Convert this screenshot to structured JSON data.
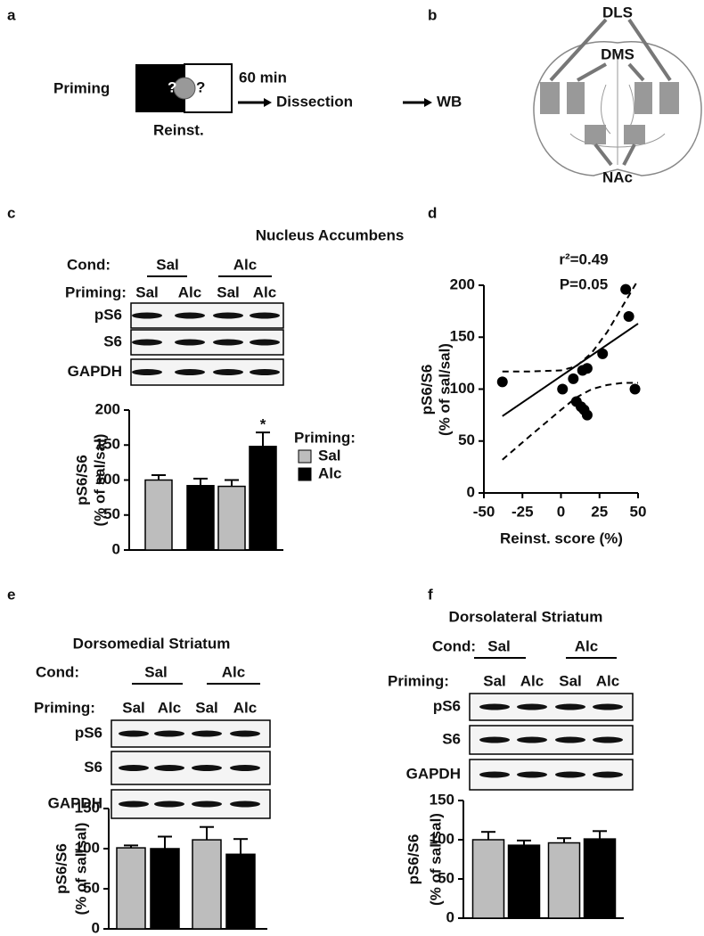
{
  "figure": {
    "panel_a": {
      "label": "a",
      "priming": "Priming",
      "icon_marks": [
        "?",
        "?"
      ],
      "reinst": "Reinst.",
      "time": "60 min",
      "dissection": "Dissection",
      "wb": "WB"
    },
    "panel_b": {
      "label": "b",
      "regions": [
        "DLS",
        "DMS",
        "NAc"
      ]
    }
  },
  "chart_data": [
    {
      "type": "bar",
      "panel": "c",
      "title": "Nucleus Accumbens",
      "cond_label": "Cond:",
      "categories": [
        "Sal",
        "Alc"
      ],
      "priming_label": "Priming:",
      "priming": [
        "Sal",
        "Alc",
        "Sal",
        "Alc"
      ],
      "blot_rows": [
        "pS6",
        "S6",
        "GAPDH"
      ],
      "y_label": [
        "pS6/S6",
        "(% of sal/sal)"
      ],
      "ylim": [
        0,
        200
      ],
      "yticks": [
        0,
        50,
        100,
        150,
        200
      ],
      "legend_title": "Priming:",
      "series": [
        {
          "name": "Sal",
          "color": "#bdbdbd",
          "values": [
            100,
            91
          ],
          "errors": [
            7,
            9
          ]
        },
        {
          "name": "Alc",
          "color": "#000000",
          "values": [
            92,
            148
          ],
          "errors": [
            10,
            20
          ]
        }
      ],
      "annotations": [
        {
          "text": "*",
          "series": 1,
          "category": 1
        }
      ]
    },
    {
      "type": "scatter",
      "panel": "d",
      "stats": [
        "r²=0.49",
        "P=0.05"
      ],
      "x_label": "Reinst. score (%)",
      "y_label": [
        "pS6/S6",
        "(% of sal/sal)"
      ],
      "xlim": [
        -50,
        50
      ],
      "xticks": [
        -50,
        -25,
        0,
        25,
        50
      ],
      "ylim": [
        0,
        200
      ],
      "yticks": [
        0,
        50,
        100,
        150,
        200
      ],
      "series": [
        {
          "style": "markers",
          "color": "#000000",
          "x": [
            -38,
            1,
            8,
            14,
            17,
            27,
            42,
            44,
            48,
            10,
            13,
            15,
            17
          ],
          "values": [
            107,
            100,
            110,
            118,
            120,
            134,
            196,
            170,
            100,
            88,
            83,
            80,
            75
          ]
        },
        {
          "style": "solid",
          "color": "#000000",
          "x": [
            -38,
            50
          ],
          "values": [
            74,
            163
          ]
        },
        {
          "style": "dashed",
          "color": "#000000",
          "x": [
            -38,
            -20,
            0,
            10,
            20,
            30,
            40,
            50
          ],
          "values": [
            117,
            117,
            118,
            122,
            135,
            155,
            180,
            205
          ]
        },
        {
          "style": "dashed",
          "color": "#000000",
          "x": [
            -38,
            -20,
            0,
            10,
            20,
            30,
            40,
            50
          ],
          "values": [
            32,
            55,
            80,
            92,
            100,
            104,
            106,
            106
          ]
        }
      ]
    },
    {
      "type": "bar",
      "panel": "e",
      "title": "Dorsomedial Striatum",
      "cond_label": "Cond:",
      "categories": [
        "Sal",
        "Alc"
      ],
      "priming_label": "Priming:",
      "priming": [
        "Sal",
        "Alc",
        "Sal",
        "Alc"
      ],
      "blot_rows": [
        "pS6",
        "S6",
        "GAPDH"
      ],
      "y_label": [
        "pS6/S6",
        "(% of sal/sal)"
      ],
      "ylim": [
        0,
        150
      ],
      "yticks": [
        0,
        50,
        100,
        150
      ],
      "series": [
        {
          "color": "#bdbdbd",
          "values": [
            101,
            111
          ],
          "errors": [
            3,
            16
          ]
        },
        {
          "color": "#000000",
          "values": [
            100,
            93
          ],
          "errors": [
            15,
            19
          ]
        }
      ]
    },
    {
      "type": "bar",
      "panel": "f",
      "title": "Dorsolateral Striatum",
      "cond_label": "Cond:",
      "categories": [
        "Sal",
        "Alc"
      ],
      "priming_label": "Priming:",
      "priming": [
        "Sal",
        "Alc",
        "Sal",
        "Alc"
      ],
      "blot_rows": [
        "pS6",
        "S6",
        "GAPDH"
      ],
      "y_label": [
        "pS6/S6",
        "(% of sal/sal)"
      ],
      "ylim": [
        0,
        150
      ],
      "yticks": [
        0,
        50,
        100,
        150
      ],
      "series": [
        {
          "color": "#bdbdbd",
          "values": [
            100,
            96
          ],
          "errors": [
            10,
            6
          ]
        },
        {
          "color": "#000000",
          "values": [
            93,
            101
          ],
          "errors": [
            6,
            10
          ]
        }
      ]
    }
  ]
}
